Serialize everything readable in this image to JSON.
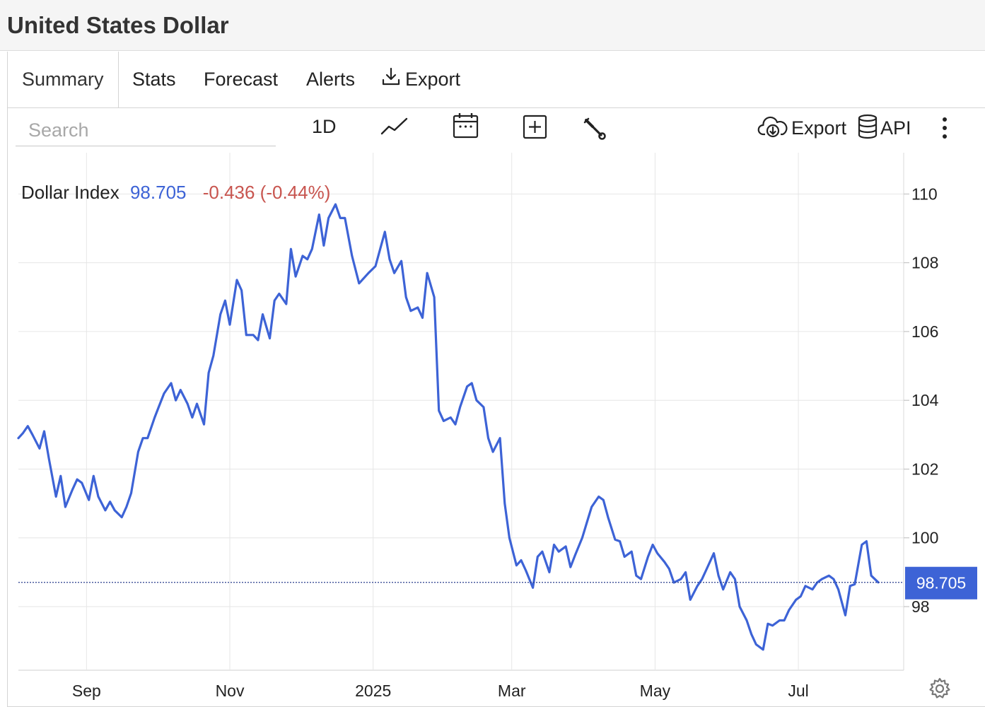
{
  "header": {
    "title": "United States Dollar"
  },
  "tabs": [
    {
      "label": "Summary"
    },
    {
      "label": "Stats"
    },
    {
      "label": "Forecast"
    },
    {
      "label": "Alerts"
    },
    {
      "label": "Export",
      "icon": "download-icon"
    }
  ],
  "toolbar": {
    "search_placeholder": "Search",
    "period_label": "1D",
    "export_label": "Export",
    "api_label": "API",
    "icons": [
      "line-chart-icon",
      "calendar-icon",
      "plus-box-icon",
      "wrench-icon",
      "cloud-download-icon",
      "database-icon",
      "more-vertical-icon",
      "gear-icon"
    ]
  },
  "quote": {
    "name": "Dollar Index",
    "price": "98.705",
    "change": "-0.436 (-0.44%)"
  },
  "colors": {
    "line": "#3d63d6",
    "change": "#c8554f",
    "price": "#3d63d6",
    "grid": "#e6e6e6"
  },
  "chart_data": {
    "type": "line",
    "title": "Dollar Index",
    "x_tick_labels": [
      "Sep",
      "Nov",
      "2025",
      "Mar",
      "May",
      "Jul"
    ],
    "x_tick_dates": [
      "2024-09-01",
      "2024-11-01",
      "2025-01-01",
      "2025-03-01",
      "2025-05-01",
      "2025-07-01"
    ],
    "y_ticks": [
      98,
      100,
      102,
      104,
      106,
      108,
      110
    ],
    "ylim": [
      96.15,
      111.2
    ],
    "xlim": [
      "2024-08-03",
      "2025-08-07"
    ],
    "last_value": 98.705,
    "last_value_label": "98.705",
    "grid": true,
    "series": [
      {
        "x": [
          "2024-08-03",
          "2024-08-05",
          "2024-08-07",
          "2024-08-09",
          "2024-08-12",
          "2024-08-14",
          "2024-08-16",
          "2024-08-19",
          "2024-08-21",
          "2024-08-23",
          "2024-08-26",
          "2024-08-28",
          "2024-08-30",
          "2024-09-02",
          "2024-09-04",
          "2024-09-06",
          "2024-09-09",
          "2024-09-11",
          "2024-09-13",
          "2024-09-16",
          "2024-09-18",
          "2024-09-20",
          "2024-09-23",
          "2024-09-25",
          "2024-09-27",
          "2024-09-30",
          "2024-10-02",
          "2024-10-04",
          "2024-10-07",
          "2024-10-09",
          "2024-10-11",
          "2024-10-14",
          "2024-10-16",
          "2024-10-18",
          "2024-10-21",
          "2024-10-23",
          "2024-10-25",
          "2024-10-28",
          "2024-10-30",
          "2024-11-01",
          "2024-11-04",
          "2024-11-06",
          "2024-11-08",
          "2024-11-11",
          "2024-11-13",
          "2024-11-15",
          "2024-11-18",
          "2024-11-20",
          "2024-11-22",
          "2024-11-25",
          "2024-11-27",
          "2024-11-29",
          "2024-12-02",
          "2024-12-04",
          "2024-12-06",
          "2024-12-09",
          "2024-12-11",
          "2024-12-13",
          "2024-12-16",
          "2024-12-18",
          "2024-12-20",
          "2024-12-23",
          "2024-12-26",
          "2024-12-30",
          "2025-01-02",
          "2025-01-06",
          "2025-01-08",
          "2025-01-10",
          "2025-01-13",
          "2025-01-15",
          "2025-01-17",
          "2025-01-20",
          "2025-01-22",
          "2025-01-24",
          "2025-01-27",
          "2025-01-29",
          "2025-01-31",
          "2025-02-03",
          "2025-02-05",
          "2025-02-07",
          "2025-02-10",
          "2025-02-12",
          "2025-02-14",
          "2025-02-17",
          "2025-02-19",
          "2025-02-21",
          "2025-02-24",
          "2025-02-26",
          "2025-02-28",
          "2025-03-03",
          "2025-03-05",
          "2025-03-07",
          "2025-03-10",
          "2025-03-12",
          "2025-03-14",
          "2025-03-17",
          "2025-03-19",
          "2025-03-21",
          "2025-03-24",
          "2025-03-26",
          "2025-03-28",
          "2025-03-31",
          "2025-04-02",
          "2025-04-04",
          "2025-04-07",
          "2025-04-09",
          "2025-04-11",
          "2025-04-14",
          "2025-04-16",
          "2025-04-18",
          "2025-04-21",
          "2025-04-23",
          "2025-04-25",
          "2025-04-28",
          "2025-04-30",
          "2025-05-02",
          "2025-05-05",
          "2025-05-07",
          "2025-05-09",
          "2025-05-12",
          "2025-05-14",
          "2025-05-16",
          "2025-05-19",
          "2025-05-21",
          "2025-05-23",
          "2025-05-26",
          "2025-05-28",
          "2025-05-30",
          "2025-06-02",
          "2025-06-04",
          "2025-06-06",
          "2025-06-09",
          "2025-06-11",
          "2025-06-13",
          "2025-06-16",
          "2025-06-18",
          "2025-06-20",
          "2025-06-23",
          "2025-06-25",
          "2025-06-27",
          "2025-06-30",
          "2025-07-02",
          "2025-07-04",
          "2025-07-07",
          "2025-07-09",
          "2025-07-11",
          "2025-07-14",
          "2025-07-16",
          "2025-07-18",
          "2025-07-21",
          "2025-07-23",
          "2025-07-25",
          "2025-07-28",
          "2025-07-30",
          "2025-08-01",
          "2025-08-04"
        ],
        "y": [
          102.9,
          103.05,
          103.25,
          103.0,
          102.6,
          103.1,
          102.3,
          101.2,
          101.8,
          100.9,
          101.4,
          101.7,
          101.6,
          101.1,
          101.8,
          101.2,
          100.8,
          101.05,
          100.8,
          100.6,
          100.9,
          101.3,
          102.5,
          102.9,
          102.9,
          103.5,
          103.85,
          104.2,
          104.5,
          104.0,
          104.3,
          103.9,
          103.5,
          103.9,
          103.3,
          104.8,
          105.3,
          106.5,
          106.9,
          106.2,
          107.5,
          107.2,
          105.9,
          105.9,
          105.75,
          106.5,
          105.8,
          106.9,
          107.1,
          106.8,
          108.4,
          107.6,
          108.2,
          108.1,
          108.4,
          109.4,
          108.5,
          109.3,
          109.7,
          109.3,
          109.3,
          108.2,
          107.4,
          107.7,
          107.9,
          108.9,
          108.1,
          107.7,
          108.05,
          107.0,
          106.6,
          106.7,
          106.4,
          107.7,
          107.0,
          103.7,
          103.4,
          103.5,
          103.3,
          103.8,
          104.4,
          104.5,
          104.0,
          103.8,
          102.9,
          102.5,
          102.9,
          101.0,
          100.0,
          99.2,
          99.35,
          99.05,
          98.55,
          99.45,
          99.6,
          99.0,
          99.8,
          99.6,
          99.75,
          99.15,
          99.5,
          100.0,
          100.45,
          100.9,
          101.2,
          101.1,
          100.6,
          99.95,
          99.9,
          99.45,
          99.6,
          98.9,
          98.8,
          99.45,
          99.8,
          99.55,
          99.3,
          99.1,
          98.7,
          98.8,
          99.0,
          98.2,
          98.6,
          98.8,
          99.1,
          99.55,
          98.9,
          98.5,
          99.0,
          98.8,
          98.0,
          97.6,
          97.2,
          96.9,
          96.75,
          97.5,
          97.45,
          97.6,
          97.6,
          97.9,
          98.2,
          98.3,
          98.6,
          98.5,
          98.7,
          98.8,
          98.9,
          98.8,
          98.5,
          97.75,
          98.6,
          98.65,
          99.8,
          99.9,
          98.9,
          98.705
        ]
      }
    ]
  }
}
